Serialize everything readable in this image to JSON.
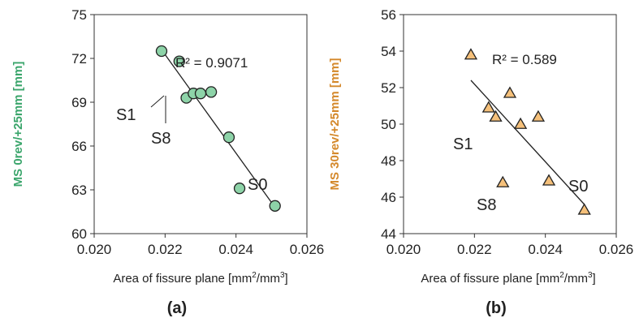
{
  "chart_data": [
    {
      "type": "scatter",
      "caption": "(a)",
      "xlabel": "Area of fissure plane [mm²/mm³]",
      "ylabel": "MS 0rev/+25mm [mm]",
      "xlim": [
        0.02,
        0.026
      ],
      "ylim": [
        60,
        75
      ],
      "xticks": [
        "0.020",
        "0.022",
        "0.024",
        "0.026"
      ],
      "yticks": [
        "60",
        "63",
        "66",
        "69",
        "72",
        "75"
      ],
      "marker": "circle",
      "marker_color": "#8dd3a8",
      "ylabel_color": "#3aa56b",
      "r2_label": "R² = 0.9071",
      "trendline": [
        [
          0.0219,
          72.6
        ],
        [
          0.0251,
          61.8
        ]
      ],
      "points": [
        {
          "x": 0.0219,
          "y": 72.5
        },
        {
          "x": 0.0224,
          "y": 71.8
        },
        {
          "x": 0.0226,
          "y": 69.3
        },
        {
          "x": 0.0228,
          "y": 69.6
        },
        {
          "x": 0.023,
          "y": 69.6
        },
        {
          "x": 0.0233,
          "y": 69.7
        },
        {
          "x": 0.0238,
          "y": 66.6
        },
        {
          "x": 0.0241,
          "y": 63.1
        },
        {
          "x": 0.0251,
          "y": 61.9
        }
      ],
      "annotations": [
        "S1",
        "S8",
        "S0"
      ]
    },
    {
      "type": "scatter",
      "caption": "(b)",
      "xlabel": "Area of fissure plane [mm²/mm³]",
      "ylabel": "MS 30rev/+25mm [mm]",
      "xlim": [
        0.02,
        0.026
      ],
      "ylim": [
        44,
        56
      ],
      "xticks": [
        "0.020",
        "0.022",
        "0.024",
        "0.026"
      ],
      "yticks": [
        "44",
        "46",
        "48",
        "50",
        "52",
        "54",
        "56"
      ],
      "marker": "triangle",
      "marker_color": "#f5c07a",
      "ylabel_color": "#d4882a",
      "r2_label": "R² = 0.589",
      "trendline": [
        [
          0.0219,
          52.4
        ],
        [
          0.0251,
          45.6
        ]
      ],
      "points": [
        {
          "x": 0.0219,
          "y": 53.8
        },
        {
          "x": 0.0224,
          "y": 50.9
        },
        {
          "x": 0.0226,
          "y": 50.4
        },
        {
          "x": 0.0228,
          "y": 46.8
        },
        {
          "x": 0.023,
          "y": 51.7
        },
        {
          "x": 0.0233,
          "y": 50.0
        },
        {
          "x": 0.0238,
          "y": 50.4
        },
        {
          "x": 0.0241,
          "y": 46.9
        },
        {
          "x": 0.0251,
          "y": 45.3
        }
      ],
      "annotations": [
        "S1",
        "S8",
        "S0"
      ]
    }
  ]
}
